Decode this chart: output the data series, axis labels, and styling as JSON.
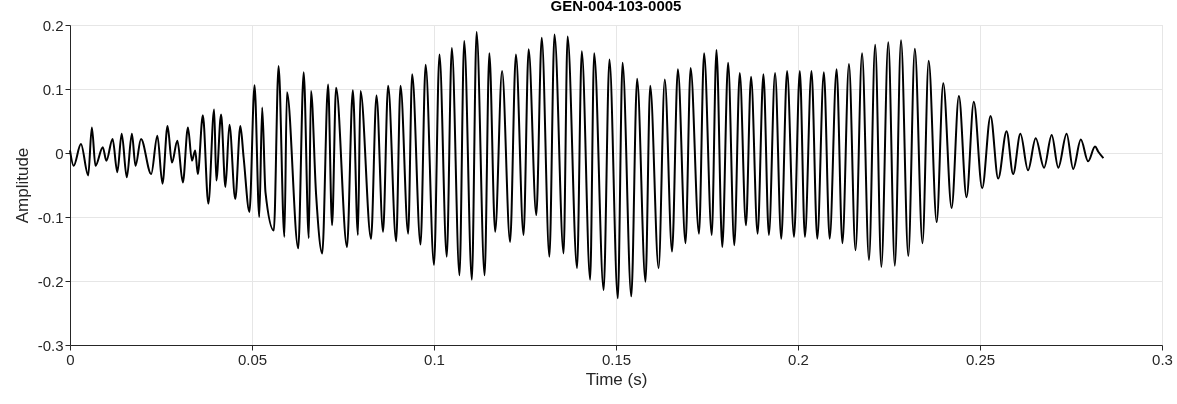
{
  "chart_data": {
    "type": "line",
    "title": "GEN-004-103-0005",
    "xlabel": "Time (s)",
    "ylabel": "Amplitude",
    "xlim": [
      0,
      0.3
    ],
    "xticks": [
      0,
      0.05,
      0.1,
      0.15,
      0.2,
      0.25,
      0.3
    ],
    "ylim": [
      -0.3,
      0.2
    ],
    "yticks": [
      -0.3,
      -0.2,
      -0.1,
      0,
      0.1,
      0.2
    ],
    "grid": true,
    "marker": "none",
    "line_style": "solid",
    "series": [
      {
        "color": "#000000",
        "x": [
          0,
          0.001,
          0.003,
          0.005,
          0.006,
          0.007,
          0.009,
          0.01,
          0.0117,
          0.013,
          0.0142,
          0.0156,
          0.017,
          0.018,
          0.0195,
          0.0223,
          0.024,
          0.0254,
          0.0268,
          0.028,
          0.0295,
          0.031,
          0.0324,
          0.0335,
          0.0344,
          0.0351,
          0.0365,
          0.038,
          0.0396,
          0.0402,
          0.0415,
          0.0427,
          0.0438,
          0.0454,
          0.0468,
          0.0477,
          0.0493,
          0.0507,
          0.052,
          0.0528,
          0.0537,
          0.056,
          0.0573,
          0.0589,
          0.0596,
          0.0627,
          0.0642,
          0.0656,
          0.0662,
          0.0676,
          0.0693,
          0.0709,
          0.072,
          0.0731,
          0.0761,
          0.0777,
          0.0791,
          0.0798,
          0.0827,
          0.0842,
          0.086,
          0.0874,
          0.0896,
          0.0908,
          0.0929,
          0.094,
          0.0963,
          0.0977,
          0.1,
          0.1015,
          0.1035,
          0.1049,
          0.107,
          0.1083,
          0.1104,
          0.1117,
          0.1139,
          0.1152,
          0.1168,
          0.1187,
          0.1209,
          0.1225,
          0.1246,
          0.126,
          0.1281,
          0.1296,
          0.1317,
          0.1331,
          0.1356,
          0.1367,
          0.1393,
          0.1406,
          0.1429,
          0.144,
          0.1466,
          0.1482,
          0.1505,
          0.1518,
          0.1542,
          0.1558,
          0.1581,
          0.1594,
          0.1617,
          0.1634,
          0.1654,
          0.167,
          0.1691,
          0.1705,
          0.1728,
          0.1742,
          0.1763,
          0.1776,
          0.1792,
          0.1808,
          0.1825,
          0.184,
          0.1857,
          0.1871,
          0.1889,
          0.1905,
          0.192,
          0.1937,
          0.1954,
          0.197,
          0.1989,
          0.2005,
          0.2019,
          0.2037,
          0.2053,
          0.2071,
          0.2087,
          0.2106,
          0.2122,
          0.214,
          0.2158,
          0.2176,
          0.2195,
          0.2212,
          0.2229,
          0.2248,
          0.2266,
          0.2283,
          0.2303,
          0.2321,
          0.2342,
          0.2359,
          0.2381,
          0.2399,
          0.2422,
          0.2442,
          0.2463,
          0.2483,
          0.2506,
          0.2529,
          0.255,
          0.2573,
          0.2591,
          0.2611,
          0.2632,
          0.2653,
          0.2676,
          0.2697,
          0.2715,
          0.2738,
          0.2756,
          0.2777,
          0.2797,
          0.2816,
          0.2825,
          0.2839
        ],
        "values": [
          0.004,
          -0.02,
          0.014,
          -0.035,
          0.04,
          -0.02,
          0.009,
          -0.012,
          0.022,
          -0.03,
          0.03,
          -0.038,
          0.03,
          -0.02,
          0.022,
          -0.033,
          0.027,
          -0.048,
          0.042,
          -0.015,
          0.019,
          -0.046,
          0.04,
          -0.012,
          0.004,
          -0.033,
          0.059,
          -0.079,
          0.068,
          -0.043,
          0.06,
          -0.053,
          0.044,
          -0.072,
          0.042,
          -0.007,
          -0.092,
          0.106,
          -0.1,
          0.071,
          -0.061,
          -0.121,
          0.136,
          -0.131,
          0.095,
          -0.149,
          0.126,
          -0.133,
          0.097,
          -0.064,
          -0.157,
          0.107,
          -0.113,
          0.102,
          -0.147,
          0.098,
          -0.128,
          0.097,
          -0.134,
          0.09,
          -0.123,
          0.105,
          -0.138,
          0.105,
          -0.126,
          0.123,
          -0.143,
          0.138,
          -0.175,
          0.154,
          -0.162,
          0.164,
          -0.191,
          0.175,
          -0.198,
          0.189,
          -0.191,
          0.156,
          -0.123,
          0.128,
          -0.139,
          0.154,
          -0.128,
          0.162,
          -0.097,
          0.18,
          -0.162,
          0.185,
          -0.157,
          0.182,
          -0.18,
          0.159,
          -0.198,
          0.156,
          -0.214,
          0.146,
          -0.227,
          0.141,
          -0.224,
          0.116,
          -0.201,
          0.105,
          -0.18,
          0.115,
          -0.154,
          0.131,
          -0.141,
          0.133,
          -0.126,
          0.156,
          -0.128,
          0.161,
          -0.147,
          0.141,
          -0.144,
          0.125,
          -0.113,
          0.119,
          -0.126,
          0.123,
          -0.128,
          0.125,
          -0.134,
          0.128,
          -0.131,
          0.128,
          -0.131,
          0.128,
          -0.134,
          0.126,
          -0.134,
          0.131,
          -0.141,
          0.139,
          -0.152,
          0.156,
          -0.167,
          0.169,
          -0.178,
          0.173,
          -0.176,
          0.176,
          -0.161,
          0.163,
          -0.141,
          0.144,
          -0.108,
          0.109,
          -0.086,
          0.089,
          -0.069,
          0.08,
          -0.055,
          0.058,
          -0.04,
          0.034,
          -0.033,
          0.03,
          -0.027,
          0.023,
          -0.023,
          0.028,
          -0.023,
          0.03,
          -0.025,
          0.021,
          -0.013,
          0.01,
          0.002,
          -0.008
        ]
      }
    ]
  }
}
